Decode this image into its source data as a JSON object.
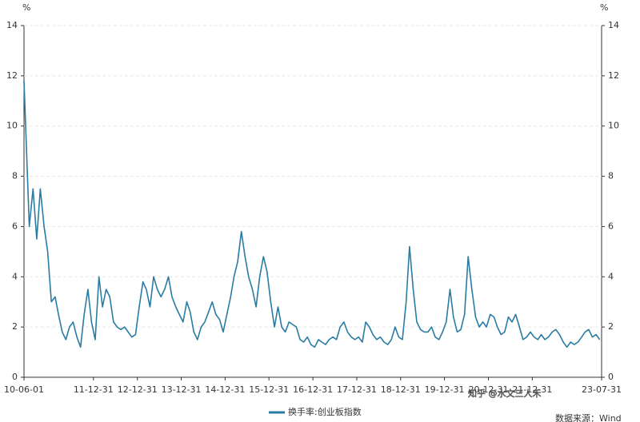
{
  "chart_data": {
    "type": "line",
    "y_unit": "%",
    "y2_unit": "%",
    "x": [
      "10-06-01",
      "10-07-15",
      "10-08-15",
      "10-09-15",
      "10-10-15",
      "10-11-15",
      "10-12-15",
      "11-01-15",
      "11-02-15",
      "11-03-15",
      "11-04-15",
      "11-05-15",
      "11-06-15",
      "11-07-15",
      "11-08-15",
      "11-09-15",
      "11-10-15",
      "11-11-15",
      "11-12-15",
      "12-01-15",
      "12-02-15",
      "12-03-15",
      "12-04-15",
      "12-05-15",
      "12-06-15",
      "12-07-15",
      "12-08-15",
      "12-09-15",
      "12-10-15",
      "12-11-15",
      "12-12-15",
      "13-01-15",
      "13-02-15",
      "13-03-15",
      "13-04-15",
      "13-05-15",
      "13-06-15",
      "13-07-15",
      "13-08-15",
      "13-09-15",
      "13-10-15",
      "13-11-15",
      "13-12-15",
      "14-01-15",
      "14-02-15",
      "14-03-15",
      "14-04-15",
      "14-05-15",
      "14-06-15",
      "14-07-15",
      "14-08-15",
      "14-09-15",
      "14-10-15",
      "14-11-15",
      "14-12-15",
      "15-01-15",
      "15-02-15",
      "15-03-15",
      "15-04-15",
      "15-05-15",
      "15-06-15",
      "15-07-15",
      "15-08-15",
      "15-09-15",
      "15-10-15",
      "15-11-15",
      "15-12-15",
      "16-01-15",
      "16-02-15",
      "16-03-15",
      "16-04-15",
      "16-05-15",
      "16-06-15",
      "16-07-15",
      "16-08-15",
      "16-09-15",
      "16-10-15",
      "16-11-15",
      "16-12-15",
      "17-01-15",
      "17-02-15",
      "17-03-15",
      "17-04-15",
      "17-05-15",
      "17-06-15",
      "17-07-15",
      "17-08-15",
      "17-09-15",
      "17-10-15",
      "17-11-15",
      "17-12-15",
      "18-01-15",
      "18-02-15",
      "18-03-15",
      "18-04-15",
      "18-05-15",
      "18-06-15",
      "18-07-15",
      "18-08-15",
      "18-09-15",
      "18-10-15",
      "18-11-15",
      "18-12-15",
      "19-01-15",
      "19-02-15",
      "19-03-15",
      "19-04-15",
      "19-05-15",
      "19-06-15",
      "19-07-15",
      "19-08-15",
      "19-09-15",
      "19-10-15",
      "19-11-15",
      "19-12-15",
      "20-01-15",
      "20-02-15",
      "20-03-15",
      "20-04-15",
      "20-05-15",
      "20-06-15",
      "20-07-15",
      "20-08-15",
      "20-09-15",
      "20-10-15",
      "20-11-15",
      "20-12-15",
      "21-01-15",
      "21-02-15",
      "21-03-15",
      "21-04-15",
      "21-05-15",
      "21-06-15",
      "21-07-15",
      "21-08-15",
      "21-09-15",
      "21-10-15",
      "21-11-15",
      "21-12-15",
      "22-01-15",
      "22-02-15",
      "22-03-15",
      "22-04-15",
      "22-05-15",
      "22-06-15",
      "22-07-15",
      "22-08-15",
      "22-09-15",
      "22-10-15",
      "22-11-15",
      "22-12-15",
      "23-01-15",
      "23-02-15",
      "23-03-15",
      "23-04-15",
      "23-05-15",
      "23-06-15",
      "23-07-15"
    ],
    "series": [
      {
        "name": "换手率:创业板指数",
        "color": "#2a7ca3",
        "values": [
          11.8,
          6,
          7.5,
          5.5,
          7.5,
          6,
          5,
          3,
          3.2,
          2.5,
          1.8,
          1.5,
          2,
          2.2,
          1.6,
          1.2,
          2.5,
          3.5,
          2.2,
          1.5,
          4,
          2.8,
          3.5,
          3.2,
          2.2,
          2,
          1.9,
          2,
          1.8,
          1.6,
          1.7,
          2.8,
          3.8,
          3.5,
          2.8,
          4,
          3.5,
          3.2,
          3.5,
          4,
          3.2,
          2.8,
          2.5,
          2.2,
          3,
          2.6,
          1.8,
          1.5,
          2,
          2.2,
          2.6,
          3,
          2.5,
          2.3,
          1.8,
          2.5,
          3.2,
          4,
          4.6,
          5.8,
          4.8,
          4,
          3.5,
          2.8,
          4,
          4.8,
          4.2,
          3,
          2,
          2.8,
          2,
          1.8,
          2.2,
          2.1,
          2,
          1.5,
          1.4,
          1.6,
          1.3,
          1.2,
          1.5,
          1.4,
          1.3,
          1.5,
          1.6,
          1.5,
          2,
          2.2,
          1.8,
          1.6,
          1.5,
          1.6,
          1.4,
          2.2,
          2,
          1.7,
          1.5,
          1.6,
          1.4,
          1.3,
          1.5,
          2,
          1.6,
          1.5,
          3,
          5.2,
          3.5,
          2.2,
          1.9,
          1.8,
          1.8,
          2,
          1.6,
          1.5,
          1.8,
          2.2,
          3.5,
          2.4,
          1.8,
          1.9,
          2.5,
          4.8,
          3.5,
          2.4,
          2,
          2.2,
          2,
          2.5,
          2.4,
          2,
          1.7,
          1.8,
          2.4,
          2.2,
          2.5,
          2,
          1.5,
          1.6,
          1.8,
          1.6,
          1.5,
          1.7,
          1.5,
          1.6,
          1.8,
          1.9,
          1.7,
          1.4,
          1.2,
          1.4,
          1.3,
          1.4,
          1.6,
          1.8,
          1.9,
          1.6,
          1.7,
          1.5
        ]
      }
    ],
    "xlim": [
      "10-06-01",
      "23-07-31"
    ],
    "xticks": [
      "10-06-01",
      "11-12-31",
      "12-12-31",
      "13-12-31",
      "14-12-31",
      "15-12-31",
      "16-12-31",
      "17-12-31",
      "18-12-31",
      "19-12-31",
      "20-12-31",
      "21-12-31",
      "23-07-31"
    ],
    "ylim": [
      0,
      14
    ],
    "yticks": [
      0,
      2,
      4,
      6,
      8,
      10,
      12,
      14
    ],
    "y2lim": [
      0,
      14
    ],
    "y2ticks": [
      0,
      2,
      4,
      6,
      8,
      10,
      12,
      14
    ],
    "grid": true,
    "legend": "bottom",
    "watermark": "知乎 @水文三人禾",
    "source": "数据来源：Wind"
  }
}
